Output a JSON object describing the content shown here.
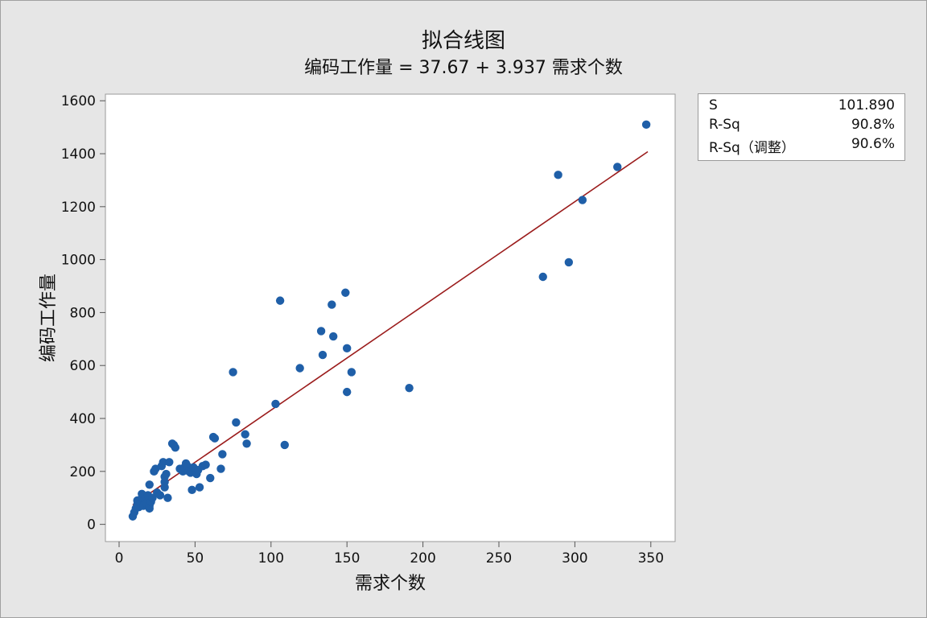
{
  "title": "拟合线图",
  "subtitle": "编码工作量 = 37.67 + 3.937 需求个数",
  "stats": [
    {
      "label": "S",
      "value": "101.890"
    },
    {
      "label": "R-Sq",
      "value": "90.8%"
    },
    {
      "label": "R-Sq（调整）",
      "value": "90.6%"
    }
  ],
  "chart_data": {
    "type": "scatter",
    "xlabel": "需求个数",
    "ylabel": "编码工作量",
    "xlim": [
      -9,
      366
    ],
    "ylim": [
      -65,
      1625
    ],
    "xticks": [
      0,
      50,
      100,
      150,
      200,
      250,
      300,
      350
    ],
    "yticks": [
      0,
      200,
      400,
      600,
      800,
      1000,
      1200,
      1400,
      1600
    ],
    "grid": false,
    "colors": {
      "points": "#1f5fa8",
      "fit_line": "#9b1c1c"
    },
    "fit": {
      "intercept": 37.67,
      "slope": 3.937,
      "x_range": [
        9,
        348
      ]
    },
    "points": [
      [
        9,
        30
      ],
      [
        10,
        45
      ],
      [
        11,
        60
      ],
      [
        12,
        75
      ],
      [
        12,
        90
      ],
      [
        13,
        65
      ],
      [
        14,
        80
      ],
      [
        15,
        100
      ],
      [
        15,
        115
      ],
      [
        16,
        70
      ],
      [
        17,
        95
      ],
      [
        18,
        80
      ],
      [
        19,
        110
      ],
      [
        20,
        60
      ],
      [
        20,
        70
      ],
      [
        20,
        150
      ],
      [
        21,
        85
      ],
      [
        22,
        100
      ],
      [
        23,
        200
      ],
      [
        24,
        210
      ],
      [
        25,
        120
      ],
      [
        27,
        110
      ],
      [
        28,
        220
      ],
      [
        29,
        235
      ],
      [
        30,
        140
      ],
      [
        30,
        160
      ],
      [
        30,
        180
      ],
      [
        31,
        190
      ],
      [
        32,
        100
      ],
      [
        33,
        235
      ],
      [
        35,
        305
      ],
      [
        36,
        300
      ],
      [
        37,
        290
      ],
      [
        40,
        210
      ],
      [
        42,
        200
      ],
      [
        43,
        215
      ],
      [
        44,
        230
      ],
      [
        45,
        220
      ],
      [
        46,
        200
      ],
      [
        47,
        195
      ],
      [
        48,
        130
      ],
      [
        49,
        215
      ],
      [
        50,
        200
      ],
      [
        51,
        190
      ],
      [
        52,
        205
      ],
      [
        53,
        140
      ],
      [
        55,
        220
      ],
      [
        57,
        225
      ],
      [
        60,
        175
      ],
      [
        62,
        330
      ],
      [
        63,
        325
      ],
      [
        67,
        210
      ],
      [
        68,
        265
      ],
      [
        75,
        575
      ],
      [
        77,
        385
      ],
      [
        83,
        340
      ],
      [
        84,
        305
      ],
      [
        103,
        455
      ],
      [
        106,
        845
      ],
      [
        109,
        300
      ],
      [
        119,
        590
      ],
      [
        133,
        730
      ],
      [
        134,
        640
      ],
      [
        140,
        830
      ],
      [
        141,
        710
      ],
      [
        149,
        875
      ],
      [
        150,
        665
      ],
      [
        150,
        500
      ],
      [
        153,
        575
      ],
      [
        191,
        515
      ],
      [
        279,
        935
      ],
      [
        289,
        1320
      ],
      [
        296,
        990
      ],
      [
        305,
        1225
      ],
      [
        328,
        1350
      ],
      [
        347,
        1510
      ]
    ]
  }
}
